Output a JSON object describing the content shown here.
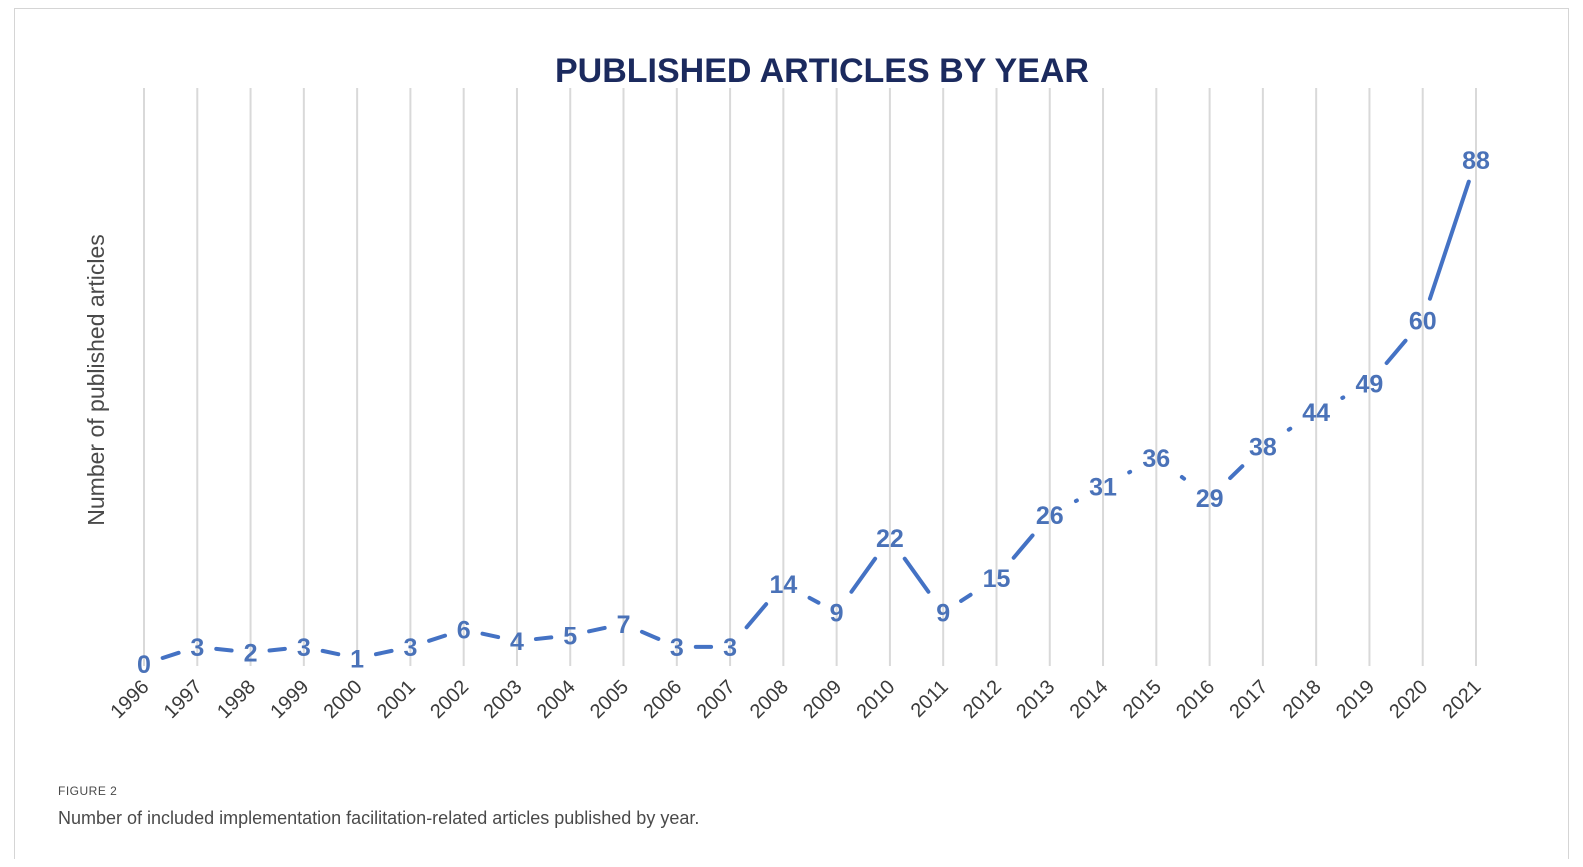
{
  "figure": {
    "label": "FIGURE 2",
    "caption": "Number of included implementation facilitation-related articles published by year."
  },
  "colors": {
    "title": "#1b2a5e",
    "series": "#4472c4",
    "data_label": "#4a72b8",
    "gridline": "#d9d9d9"
  },
  "chart_data": {
    "type": "line",
    "title": "PUBLISHED ARTICLES BY YEAR",
    "xlabel": "",
    "ylabel": "Number of published articles",
    "x": [
      "1996",
      "1997",
      "1998",
      "1999",
      "2000",
      "2001",
      "2002",
      "2003",
      "2004",
      "2005",
      "2006",
      "2007",
      "2008",
      "2009",
      "2010",
      "2011",
      "2012",
      "2013",
      "2014",
      "2015",
      "2016",
      "2017",
      "2018",
      "2019",
      "2020",
      "2021"
    ],
    "series": [
      {
        "values": [
          0,
          3,
          2,
          3,
          1,
          3,
          6,
          4,
          5,
          7,
          3,
          3,
          14,
          9,
          22,
          9,
          15,
          26,
          31,
          36,
          29,
          38,
          44,
          49,
          60,
          88
        ]
      }
    ],
    "ylim": [
      0,
      90
    ],
    "grid": "vertical",
    "data_labels": true,
    "tick_rotation": -45
  }
}
